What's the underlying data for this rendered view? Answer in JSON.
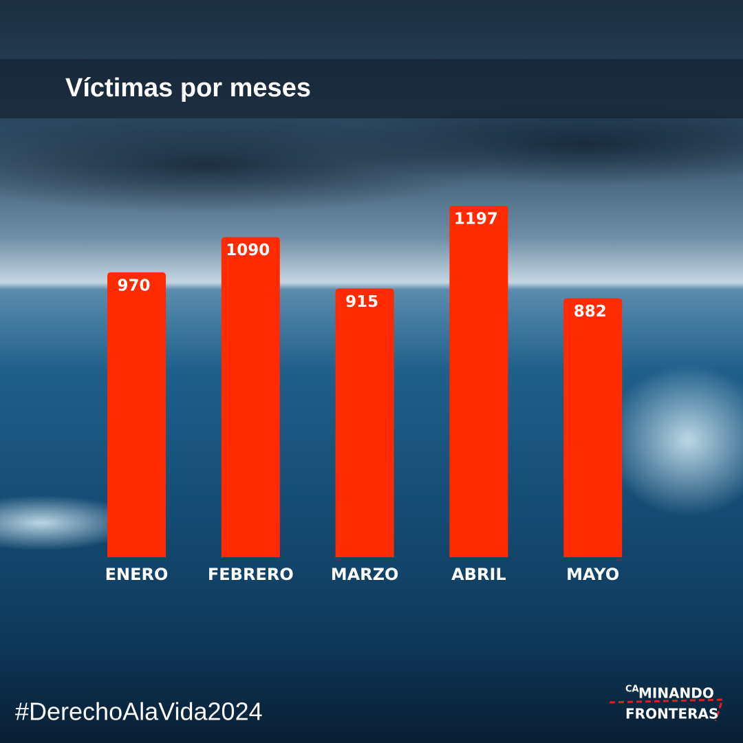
{
  "chart_data": {
    "type": "bar",
    "title": "Víctimas por meses",
    "categories": [
      "ENERO",
      "FEBRERO",
      "MARZO",
      "ABRIL",
      "MAYO"
    ],
    "values": [
      970,
      1090,
      915,
      1197,
      882
    ],
    "color": "#ff2a00"
  },
  "footer": {
    "hashtag": "#DerechoAlaVida2024",
    "logo": {
      "prefix": "CA",
      "line1": "MINANDO",
      "line2": "FRONTERAS"
    }
  }
}
